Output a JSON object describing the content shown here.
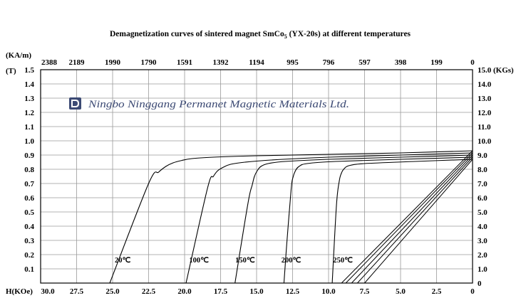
{
  "chart_data": {
    "type": "line",
    "title": "Demagnetization curves of sintered magnet SmCo",
    "title_sub": "5",
    "title_rest": " (YX-20s) at different temperatures",
    "brand": "Ningbo Ninggang Permanet Magnetic Materials Ltd.",
    "brand_icon": "company-logo-icon",
    "grid": true,
    "x_label_bottom": "H(KOe)",
    "x_ticks_bottom": [
      "30.0",
      "27.5",
      "25.0",
      "22.5",
      "20.0",
      "17.5",
      "15.0",
      "12.5",
      "10.0",
      "7.5",
      "5.0",
      "2.5",
      "0"
    ],
    "x_bottom_values": [
      30.0,
      27.5,
      25.0,
      22.5,
      20.0,
      17.5,
      15.0,
      12.5,
      10.0,
      7.5,
      5.0,
      2.5,
      0
    ],
    "x_label_top": "(KA/m)",
    "x_ticks_top": [
      "2388",
      "2189",
      "1990",
      "1790",
      "1591",
      "1392",
      "1194",
      "995",
      "796",
      "597",
      "398",
      "199",
      "0"
    ],
    "y_label_left": "(T)",
    "y_ticks_left": [
      "1.5",
      "1.4",
      "1.3",
      "1.2",
      "1.1",
      "1.0",
      "0.9",
      "0.8",
      "0.7",
      "0.6",
      "0.5",
      "0.4",
      "0.3",
      "0.2",
      "0.1"
    ],
    "y_ticks_right": [
      "15.0 (KGs)",
      "14.0",
      "13.0",
      "12.0",
      "11.0",
      "10.0",
      "9.0",
      "8.0",
      "7.0",
      "6.0",
      "5.0",
      "4.0",
      "3.0",
      "2.0",
      "1.0",
      "0"
    ],
    "xlim": [
      30,
      0
    ],
    "ylim": [
      0,
      1.5
    ],
    "series": [
      {
        "name": "20℃",
        "x": [
          0,
          5,
          10,
          15,
          18,
          19.5,
          20.2,
          20.8,
          21.3,
          21.8,
          22.5,
          25.2
        ],
        "y": [
          0.93,
          0.915,
          0.905,
          0.895,
          0.885,
          0.875,
          0.862,
          0.845,
          0.82,
          0.78,
          0.7,
          0.0
        ]
      },
      {
        "name": "100℃",
        "x": [
          0,
          5,
          10,
          14,
          15.8,
          16.8,
          17.3,
          17.7,
          18.0,
          18.4,
          19.9
        ],
        "y": [
          0.915,
          0.9,
          0.885,
          0.865,
          0.85,
          0.835,
          0.815,
          0.79,
          0.75,
          0.67,
          0.0
        ]
      },
      {
        "name": "150℃",
        "x": [
          0,
          5,
          10,
          13,
          14.2,
          14.7,
          14.95,
          15.15,
          15.3,
          15.6,
          16.5
        ],
        "y": [
          0.9,
          0.885,
          0.87,
          0.855,
          0.84,
          0.82,
          0.79,
          0.75,
          0.69,
          0.56,
          0.0
        ]
      },
      {
        "name": "200℃",
        "x": [
          0,
          5,
          9.5,
          11.5,
          12.05,
          12.3,
          12.48,
          12.6,
          12.9,
          13.1
        ],
        "y": [
          0.885,
          0.87,
          0.855,
          0.84,
          0.82,
          0.79,
          0.74,
          0.66,
          0.28,
          0.0
        ]
      },
      {
        "name": "250℃",
        "x": [
          0,
          4,
          7.5,
          8.6,
          8.95,
          9.12,
          9.25,
          9.45,
          9.75
        ],
        "y": [
          0.87,
          0.855,
          0.84,
          0.825,
          0.8,
          0.77,
          0.72,
          0.55,
          0.0
        ]
      }
    ],
    "recoil_lines": [
      {
        "x": [
          0,
          9.1
        ],
        "y": [
          0.93,
          0.0
        ]
      },
      {
        "x": [
          0,
          8.8
        ],
        "y": [
          0.915,
          0.0
        ]
      },
      {
        "x": [
          0,
          8.4
        ],
        "y": [
          0.9,
          0.0
        ]
      },
      {
        "x": [
          0,
          8.0
        ],
        "y": [
          0.885,
          0.0
        ]
      },
      {
        "x": [
          0,
          7.5
        ],
        "y": [
          0.87,
          0.0
        ]
      }
    ],
    "label_positions": [
      {
        "text": "20℃",
        "x": 24.3,
        "y": 0.145
      },
      {
        "text": "100℃",
        "x": 19.0,
        "y": 0.145
      },
      {
        "text": "150℃",
        "x": 15.8,
        "y": 0.145
      },
      {
        "text": "200℃",
        "x": 12.6,
        "y": 0.145
      },
      {
        "text": "250℃",
        "x": 9.0,
        "y": 0.145
      }
    ]
  }
}
